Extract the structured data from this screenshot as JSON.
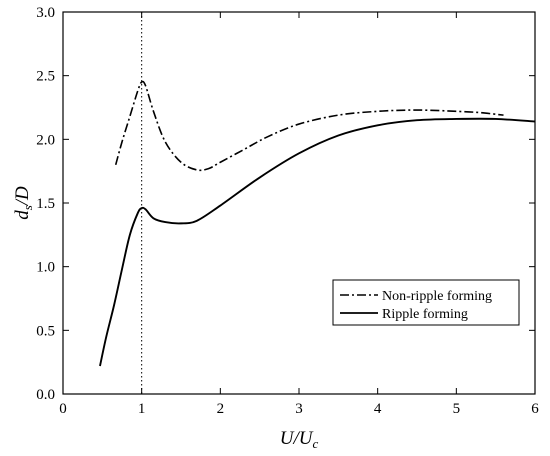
{
  "chart_data": {
    "type": "line",
    "xlabel": "U/U",
    "xlabel_sub": "c",
    "ylabel": "d",
    "ylabel_sub": "s",
    "ylabel_tail": "/D",
    "xlim": [
      0,
      6
    ],
    "ylim": [
      0,
      3
    ],
    "xticks": [
      "0",
      "1",
      "2",
      "3",
      "4",
      "5",
      "6"
    ],
    "yticks": [
      "0.0",
      "0.5",
      "1.0",
      "1.5",
      "2.0",
      "2.5",
      "3.0"
    ],
    "grid": false,
    "legend_position": "lower-right",
    "reference_line": {
      "x": 1.0,
      "style": "dotted"
    },
    "series": [
      {
        "name": "Non-ripple forming",
        "style": "dash-dot",
        "x": [
          0.67,
          0.75,
          0.85,
          0.95,
          1.0,
          1.05,
          1.15,
          1.3,
          1.5,
          1.7,
          1.85,
          2.0,
          2.3,
          2.6,
          3.0,
          3.5,
          4.0,
          4.5,
          5.0,
          5.3,
          5.6
        ],
        "y": [
          1.8,
          1.98,
          2.18,
          2.38,
          2.45,
          2.42,
          2.22,
          1.98,
          1.82,
          1.76,
          1.77,
          1.82,
          1.92,
          2.02,
          2.12,
          2.19,
          2.22,
          2.23,
          2.22,
          2.21,
          2.19
        ]
      },
      {
        "name": "Ripple forming",
        "style": "solid",
        "x": [
          0.47,
          0.55,
          0.65,
          0.75,
          0.85,
          0.95,
          1.0,
          1.05,
          1.15,
          1.3,
          1.5,
          1.7,
          2.0,
          2.5,
          3.0,
          3.5,
          4.0,
          4.5,
          5.0,
          5.5,
          6.0
        ],
        "y": [
          0.22,
          0.45,
          0.7,
          0.98,
          1.25,
          1.42,
          1.46,
          1.45,
          1.38,
          1.35,
          1.34,
          1.36,
          1.48,
          1.7,
          1.89,
          2.03,
          2.11,
          2.15,
          2.16,
          2.16,
          2.14
        ]
      }
    ]
  }
}
